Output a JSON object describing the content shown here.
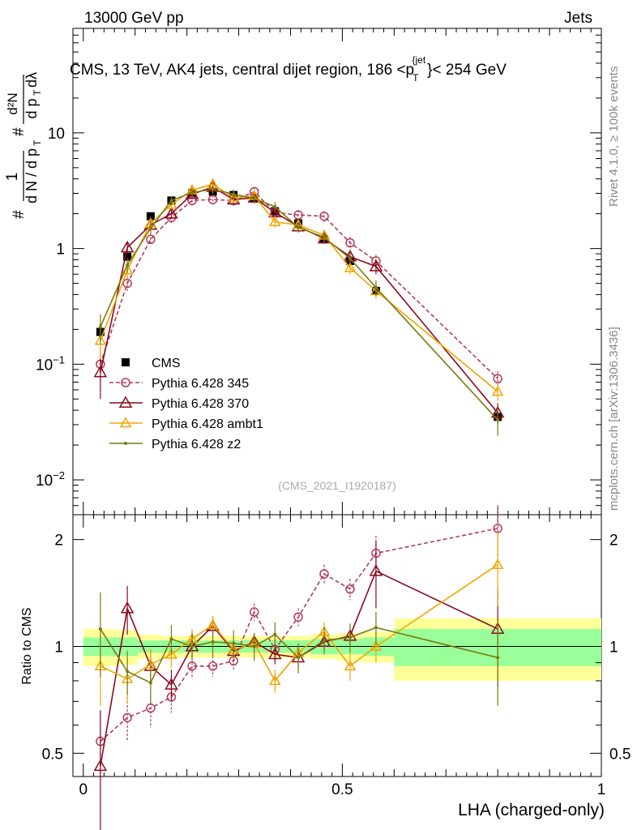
{
  "header": {
    "left": "13000 GeV pp",
    "right": "Jets"
  },
  "side_labels": {
    "rivet": "Rivet 4.1.0, ≥ 100k events",
    "mcplots": "mcplots.cern.ch [arXiv:1306.3436]"
  },
  "colors": {
    "cms": "#000000",
    "p345": "#b23b5a",
    "p370": "#8b0a1e",
    "ambt1": "#f0a500",
    "z2": "#7a7a12",
    "band_inner": "#99ff99",
    "band_outer": "#ffff99"
  },
  "chart_data": [
    {
      "type": "scatter",
      "panel": "main",
      "title": "CMS, 13 TeV, AK4 jets, central dijet region, 186 < p_T^{jet} < 254 GeV",
      "title_parts": {
        "main": "CMS, 13 TeV, AK4 jets, central dijet region, 186 <p",
        "sup": "{jet",
        "sub": "T",
        "tail": "}< 254 GeV"
      },
      "ylabel": "1/(dN/dp_T) d²N/(dp_T dλ)",
      "yscale": "log",
      "ylim": [
        0.005,
        80
      ],
      "xlim": [
        -0.02,
        1.0
      ],
      "y_ticks": [
        {
          "value": 0.01,
          "base": "10",
          "exp": "−2"
        },
        {
          "value": 0.1,
          "base": "10",
          "exp": "−1"
        },
        {
          "value": 1,
          "base": "1",
          "exp": ""
        },
        {
          "value": 10,
          "base": "10",
          "exp": ""
        }
      ],
      "watermark": "(CMS_2021_I1920187)",
      "x": [
        0.033,
        0.085,
        0.13,
        0.17,
        0.21,
        0.25,
        0.29,
        0.33,
        0.37,
        0.415,
        0.465,
        0.515,
        0.565,
        0.8
      ],
      "series": [
        {
          "name": "CMS",
          "key": "cms",
          "style": "data",
          "values": [
            0.19,
            0.85,
            1.9,
            2.6,
            3.0,
            3.1,
            2.9,
            2.7,
            2.1,
            1.65,
            1.2,
            0.78,
            0.43,
            0.035
          ],
          "errors": [
            0.03,
            0.06,
            0.1,
            0.12,
            0.12,
            0.12,
            0.12,
            0.12,
            0.1,
            0.08,
            0.07,
            0.05,
            0.04,
            0.004
          ]
        },
        {
          "name": "Pythia 6.428 345",
          "key": "p345",
          "style": "dashed-circle",
          "values": [
            0.1,
            0.5,
            1.2,
            1.85,
            2.6,
            2.65,
            2.6,
            3.1,
            2.05,
            1.95,
            1.9,
            1.12,
            0.78,
            0.075
          ],
          "errors": [
            0.03,
            0.07,
            0.15,
            0.2,
            0.25,
            0.25,
            0.25,
            0.3,
            0.2,
            0.2,
            0.2,
            0.14,
            0.1,
            0.012
          ]
        },
        {
          "name": "Pythia 6.428 370",
          "key": "p370",
          "style": "triangle",
          "values": [
            0.085,
            1.02,
            1.6,
            2.0,
            2.95,
            3.4,
            2.65,
            2.75,
            2.05,
            1.55,
            1.22,
            0.85,
            0.7,
            0.038
          ],
          "errors": [
            0.035,
            0.12,
            0.18,
            0.2,
            0.25,
            0.3,
            0.25,
            0.25,
            0.2,
            0.15,
            0.12,
            0.1,
            0.1,
            0.008
          ]
        },
        {
          "name": "Pythia 6.428 ambt1",
          "key": "ambt1",
          "style": "triangle-light",
          "values": [
            0.16,
            0.65,
            1.65,
            2.4,
            3.2,
            3.6,
            2.75,
            2.85,
            1.7,
            1.6,
            1.3,
            0.68,
            0.43,
            0.058
          ],
          "errors": [
            0.05,
            0.1,
            0.18,
            0.22,
            0.28,
            0.3,
            0.25,
            0.25,
            0.18,
            0.16,
            0.13,
            0.08,
            0.06,
            0.01
          ]
        },
        {
          "name": "Pythia 6.428 z2",
          "key": "z2",
          "style": "line-dot",
          "values": [
            0.21,
            0.72,
            1.5,
            2.6,
            3.05,
            3.25,
            2.95,
            2.7,
            2.3,
            1.52,
            1.25,
            0.82,
            0.46,
            0.033
          ],
          "errors": [
            0.06,
            0.1,
            0.18,
            0.25,
            0.28,
            0.3,
            0.28,
            0.25,
            0.22,
            0.15,
            0.13,
            0.1,
            0.07,
            0.009
          ]
        }
      ]
    },
    {
      "type": "scatter",
      "panel": "ratio",
      "ylabel": "Ratio to CMS",
      "xlabel": "LHA (charged-only)",
      "yscale": "log",
      "ylim": [
        0.43,
        2.35
      ],
      "xlim": [
        -0.02,
        1.0
      ],
      "y_ticks": [
        {
          "value": 0.5,
          "label": "0.5"
        },
        {
          "value": 1,
          "label": "1"
        },
        {
          "value": 2,
          "label": "2"
        }
      ],
      "x_ticks": [
        {
          "value": 0,
          "label": "0"
        },
        {
          "value": 0.5,
          "label": "0.5"
        },
        {
          "value": 1,
          "label": "1"
        }
      ],
      "x": [
        0.033,
        0.085,
        0.13,
        0.17,
        0.21,
        0.25,
        0.29,
        0.33,
        0.37,
        0.415,
        0.465,
        0.515,
        0.565,
        0.8
      ],
      "bins": [
        [
          0.0,
          0.065
        ],
        [
          0.065,
          0.105
        ],
        [
          0.105,
          0.15
        ],
        [
          0.15,
          0.19
        ],
        [
          0.19,
          0.23
        ],
        [
          0.23,
          0.27
        ],
        [
          0.27,
          0.31
        ],
        [
          0.31,
          0.35
        ],
        [
          0.35,
          0.39
        ],
        [
          0.39,
          0.44
        ],
        [
          0.44,
          0.49
        ],
        [
          0.49,
          0.54
        ],
        [
          0.54,
          0.6
        ],
        [
          0.6,
          1.0
        ]
      ],
      "band_inner": [
        0.06,
        0.06,
        0.04,
        0.04,
        0.04,
        0.04,
        0.04,
        0.04,
        0.04,
        0.04,
        0.05,
        0.05,
        0.06,
        0.12
      ],
      "band_outer": [
        0.12,
        0.11,
        0.08,
        0.07,
        0.07,
        0.07,
        0.07,
        0.07,
        0.07,
        0.07,
        0.08,
        0.09,
        0.1,
        0.2
      ],
      "series": [
        {
          "name": "Pythia 6.428 345",
          "key": "p345",
          "style": "dashed-circle",
          "values": [
            0.54,
            0.63,
            0.67,
            0.72,
            0.88,
            0.88,
            0.91,
            1.25,
            0.98,
            1.21,
            1.6,
            1.45,
            1.83,
            2.15
          ],
          "errors": [
            0.12,
            0.09,
            0.08,
            0.07,
            0.07,
            0.06,
            0.06,
            0.07,
            0.07,
            0.07,
            0.1,
            0.1,
            0.22,
            0.35
          ]
        },
        {
          "name": "Pythia 6.428 370",
          "key": "p370",
          "style": "triangle",
          "values": [
            0.46,
            1.28,
            0.88,
            0.78,
            1.0,
            1.14,
            0.97,
            1.03,
            0.95,
            0.93,
            1.03,
            1.07,
            1.63,
            1.12
          ],
          "errors": [
            0.2,
            0.2,
            0.1,
            0.08,
            0.07,
            0.07,
            0.06,
            0.06,
            0.06,
            0.06,
            0.06,
            0.07,
            0.35,
            0.35
          ]
        },
        {
          "name": "Pythia 6.428 ambt1",
          "key": "ambt1",
          "style": "triangle-light",
          "values": [
            0.88,
            0.81,
            0.89,
            0.95,
            1.05,
            1.15,
            0.98,
            1.02,
            0.8,
            0.96,
            1.1,
            0.88,
            1.0,
            1.7
          ],
          "errors": [
            0.2,
            0.12,
            0.09,
            0.08,
            0.07,
            0.07,
            0.06,
            0.07,
            0.06,
            0.06,
            0.07,
            0.08,
            0.1,
            0.4
          ]
        },
        {
          "name": "Pythia 6.428 z2",
          "key": "z2",
          "style": "line-dot",
          "values": [
            1.12,
            0.85,
            0.79,
            1.05,
            1.0,
            1.03,
            1.02,
            1.0,
            1.08,
            0.93,
            1.04,
            1.06,
            1.13,
            0.93
          ],
          "errors": [
            0.3,
            0.12,
            0.1,
            0.1,
            0.09,
            0.09,
            0.09,
            0.09,
            0.09,
            0.09,
            0.09,
            0.1,
            0.12,
            0.25
          ]
        }
      ]
    }
  ]
}
